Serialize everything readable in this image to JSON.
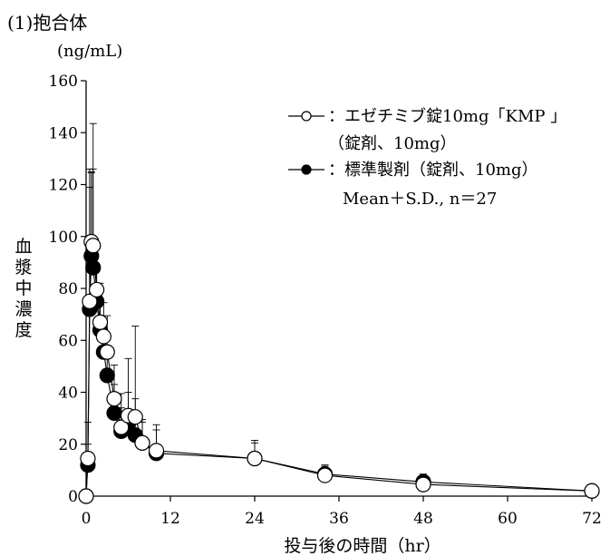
{
  "chart_data": {
    "type": "line",
    "title": "(1)抱合体",
    "y_unit": "(ng/mL)",
    "ylabel": "血漿中濃度",
    "xlabel": "投与後の時間（hr）",
    "xlim": [
      0,
      72
    ],
    "ylim": [
      0,
      160
    ],
    "x_ticks": [
      0,
      12,
      24,
      36,
      48,
      60,
      72
    ],
    "y_ticks": [
      0,
      20,
      40,
      60,
      80,
      100,
      120,
      140,
      160
    ],
    "grid": false,
    "legend_position": "top-right",
    "legend": {
      "test_line1": "：エゼチミブ錠10mg「KMP 」",
      "test_line2": "（錠剤、10mg）",
      "ref_line1": "：標準製剤（錠剤、10mg）",
      "stats_note": "Mean＋S.D., n＝27"
    },
    "series": [
      {
        "key": "test",
        "marker": "open-circle",
        "color": "#000000",
        "fill": "#ffffff",
        "x": [
          0,
          0.25,
          0.5,
          0.75,
          1,
          1.5,
          2,
          2.5,
          3,
          4,
          5,
          6,
          7,
          8,
          10,
          24,
          34,
          48,
          72
        ],
        "y": [
          0,
          14.5,
          75,
          98,
          96.5,
          79.5,
          67,
          61.5,
          55.5,
          37.5,
          26.5,
          31,
          30.5,
          20.5,
          17.5,
          14.5,
          8,
          4.5,
          2
        ],
        "sd": [
          0,
          14,
          51,
          27,
          47,
          17,
          15,
          13,
          14,
          13,
          13,
          22,
          35,
          9,
          10,
          7,
          4,
          3,
          1
        ]
      },
      {
        "key": "reference",
        "marker": "filled-circle",
        "color": "#000000",
        "fill": "#000000",
        "x": [
          0,
          0.25,
          0.5,
          0.75,
          1,
          1.5,
          2,
          2.5,
          3,
          4,
          5,
          6,
          7,
          8,
          10,
          24,
          34,
          48,
          72
        ],
        "y": [
          0,
          12,
          72,
          92.5,
          88,
          75,
          64,
          55.5,
          46.5,
          32,
          25,
          28,
          23.5,
          20.5,
          16.5,
          14.5,
          8.5,
          5.5,
          2
        ],
        "sd": [
          0,
          8,
          47,
          32,
          38,
          21,
          15,
          12,
          11,
          11,
          9,
          12,
          14,
          8,
          9,
          6,
          3,
          3,
          1
        ]
      }
    ]
  }
}
